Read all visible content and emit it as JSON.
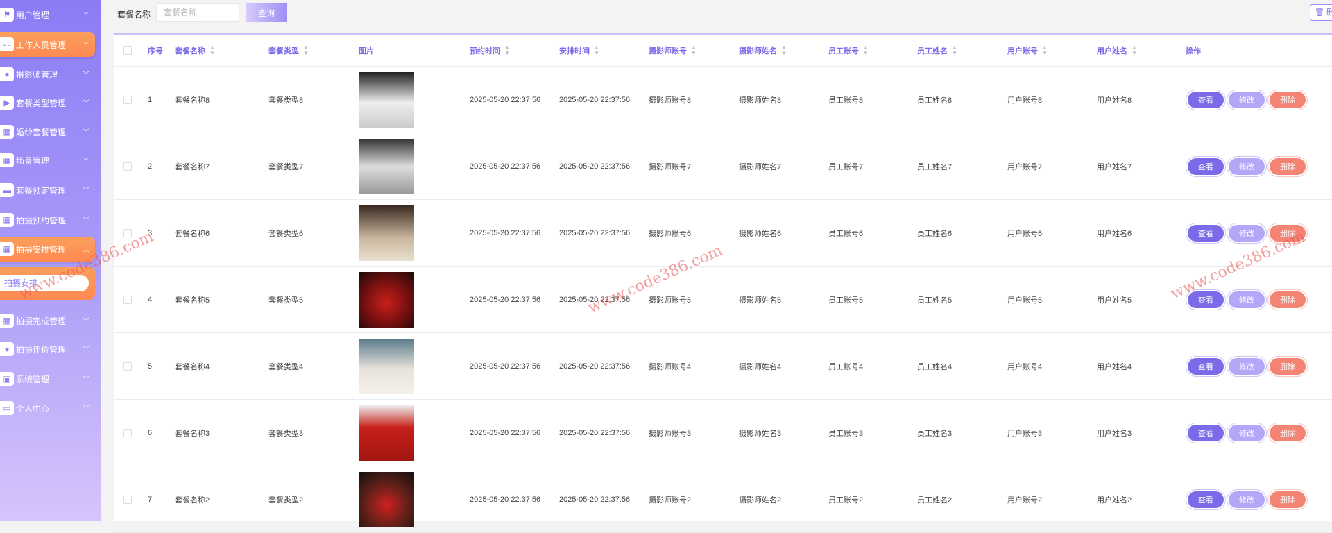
{
  "sidebar": {
    "items": [
      {
        "label": "用户管理",
        "icon": "flag-icon"
      },
      {
        "label": "工作人员管理",
        "icon": "chart-icon",
        "active": true
      },
      {
        "label": "摄影师管理",
        "icon": "user-icon"
      },
      {
        "label": "套餐类型管理",
        "icon": "video-icon"
      },
      {
        "label": "婚纱套餐管理",
        "icon": "grid-icon"
      },
      {
        "label": "场景管理",
        "icon": "grid-icon"
      },
      {
        "label": "套餐预定管理",
        "icon": "wallet-icon"
      },
      {
        "label": "拍摄预约管理",
        "icon": "grid-icon"
      },
      {
        "label": "拍摄安排管理",
        "icon": "grid-icon",
        "active": true,
        "expanded": true
      },
      {
        "label": "拍摄完成管理",
        "icon": "grid-icon"
      },
      {
        "label": "拍摄评价管理",
        "icon": "user-icon"
      },
      {
        "label": "系统管理",
        "icon": "briefcase-icon"
      },
      {
        "label": "个人中心",
        "icon": "card-icon"
      }
    ],
    "submenu": {
      "label": "拍摄安排"
    }
  },
  "search": {
    "label": "套餐名称",
    "placeholder": "套餐名称",
    "value": "",
    "button": "查询",
    "delete_button": "删除"
  },
  "table": {
    "headers": [
      "序号",
      "套餐名称",
      "套餐类型",
      "图片",
      "预约时间",
      "安排时间",
      "摄影师账号",
      "摄影师姓名",
      "员工账号",
      "员工姓名",
      "用户账号",
      "用户姓名",
      "操作"
    ],
    "actions": {
      "view": "查看",
      "edit": "修改",
      "delete": "删除"
    },
    "rows": [
      {
        "no": "1",
        "name": "套餐名称8",
        "type": "套餐类型8",
        "book": "2025-05-20 22:37:56",
        "plan": "2025-05-20 22:37:56",
        "pacc": "摄影师账号8",
        "pname": "摄影师姓名8",
        "eacc": "员工账号8",
        "ename": "员工姓名8",
        "uacc": "用户账号8",
        "uname": "用户姓名8"
      },
      {
        "no": "2",
        "name": "套餐名称7",
        "type": "套餐类型7",
        "book": "2025-05-20 22:37:56",
        "plan": "2025-05-20 22:37:56",
        "pacc": "摄影师账号7",
        "pname": "摄影师姓名7",
        "eacc": "员工账号7",
        "ename": "员工姓名7",
        "uacc": "用户账号7",
        "uname": "用户姓名7"
      },
      {
        "no": "3",
        "name": "套餐名称6",
        "type": "套餐类型6",
        "book": "2025-05-20 22:37:56",
        "plan": "2025-05-20 22:37:56",
        "pacc": "摄影师账号6",
        "pname": "摄影师姓名6",
        "eacc": "员工账号6",
        "ename": "员工姓名6",
        "uacc": "用户账号6",
        "uname": "用户姓名6"
      },
      {
        "no": "4",
        "name": "套餐名称5",
        "type": "套餐类型5",
        "book": "2025-05-20 22:37:56",
        "plan": "2025-05-20 22:37:56",
        "pacc": "摄影师账号5",
        "pname": "摄影师姓名5",
        "eacc": "员工账号5",
        "ename": "员工姓名5",
        "uacc": "用户账号5",
        "uname": "用户姓名5"
      },
      {
        "no": "5",
        "name": "套餐名称4",
        "type": "套餐类型4",
        "book": "2025-05-20 22:37:56",
        "plan": "2025-05-20 22:37:56",
        "pacc": "摄影师账号4",
        "pname": "摄影师姓名4",
        "eacc": "员工账号4",
        "ename": "员工姓名4",
        "uacc": "用户账号4",
        "uname": "用户姓名4"
      },
      {
        "no": "6",
        "name": "套餐名称3",
        "type": "套餐类型3",
        "book": "2025-05-20 22:37:56",
        "plan": "2025-05-20 22:37:56",
        "pacc": "摄影师账号3",
        "pname": "摄影师姓名3",
        "eacc": "员工账号3",
        "ename": "员工姓名3",
        "uacc": "用户账号3",
        "uname": "用户姓名3"
      },
      {
        "no": "7",
        "name": "套餐名称2",
        "type": "套餐类型2",
        "book": "2025-05-20 22:37:56",
        "plan": "2025-05-20 22:37:56",
        "pacc": "摄影师账号2",
        "pname": "摄影师姓名2",
        "eacc": "员工账号2",
        "ename": "员工姓名2",
        "uacc": "用户账号2",
        "uname": "用户姓名2"
      }
    ]
  },
  "watermark": "www.code386.com",
  "colors": {
    "accent": "#7b6be8",
    "active": "#fd8a52",
    "delete": "#f38373"
  }
}
